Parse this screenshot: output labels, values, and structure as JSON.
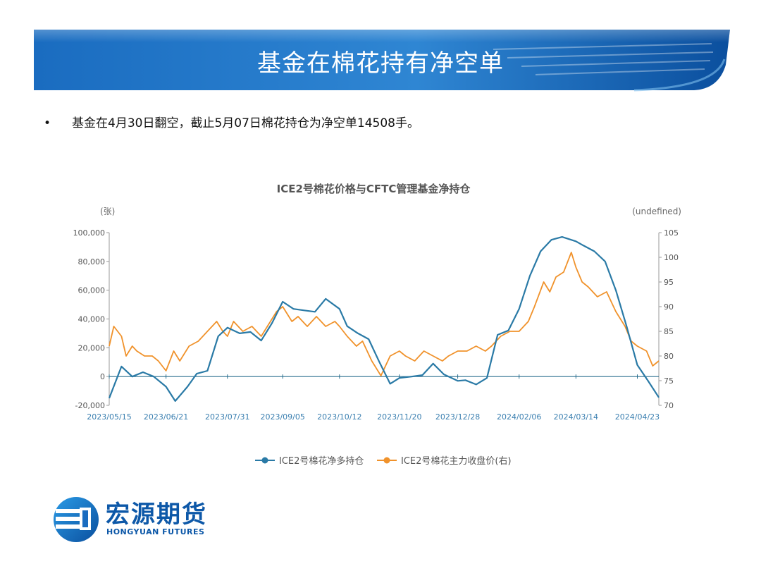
{
  "slide": {
    "title": "基金在棉花持有净空单",
    "bullet_marker": "•",
    "bullet_text": "基金在4月30日翻空，截止5月07日棉花持仓为净空单14508手。"
  },
  "logo": {
    "cn": "宏源期货",
    "en": "HONGYUAN FUTURES"
  },
  "colors": {
    "banner_dark": "#0b56a8",
    "banner_light": "#3f8fd6",
    "series_blue": "#2a7aa6",
    "series_orange": "#f0922b",
    "text_gray": "#666666"
  },
  "chart_data": {
    "type": "line",
    "title": "ICE2号棉花价格与CFTC管理基金净持仓",
    "ylabel_left": "(张)",
    "ylabel_right": "(undefined)",
    "ylim_left": [
      -20000,
      100000
    ],
    "ylim_right": [
      70,
      105
    ],
    "y_ticks_left": [
      "100,000",
      "80,000",
      "60,000",
      "40,000",
      "20,000",
      "0",
      "-20,000"
    ],
    "y_ticks_right": [
      "105",
      "100",
      "95",
      "90",
      "85",
      "80",
      "75",
      "70"
    ],
    "x_ticks": [
      "2023/05/15",
      "2023/06/21",
      "2023/07/31",
      "2023/09/05",
      "2023/10/12",
      "2023/11/20",
      "2023/12/28",
      "2024/02/06",
      "2024/03/14",
      "2024/04/23"
    ],
    "legend_position": "bottom",
    "series": [
      {
        "name": "ICE2号棉花净多持仓",
        "axis": "left",
        "x": [
          "2023/05/15",
          "2023/05/23",
          "2023/05/30",
          "2023/06/06",
          "2023/06/13",
          "2023/06/21",
          "2023/06/27",
          "2023/07/05",
          "2023/07/11",
          "2023/07/18",
          "2023/07/25",
          "2023/07/31",
          "2023/08/08",
          "2023/08/15",
          "2023/08/22",
          "2023/08/29",
          "2023/09/05",
          "2023/09/12",
          "2023/09/19",
          "2023/09/26",
          "2023/10/03",
          "2023/10/12",
          "2023/10/17",
          "2023/10/24",
          "2023/10/31",
          "2023/11/07",
          "2023/11/14",
          "2023/11/20",
          "2023/11/28",
          "2023/12/05",
          "2023/12/12",
          "2023/12/19",
          "2023/12/28",
          "2024/01/02",
          "2024/01/09",
          "2024/01/16",
          "2024/01/23",
          "2024/01/30",
          "2024/02/06",
          "2024/02/13",
          "2024/02/20",
          "2024/02/27",
          "2024/03/05",
          "2024/03/14",
          "2024/03/19",
          "2024/03/26",
          "2024/04/02",
          "2024/04/09",
          "2024/04/16",
          "2024/04/23",
          "2024/04/30",
          "2024/05/07"
        ],
        "values": [
          -15000,
          7000,
          0,
          3000,
          0,
          -7000,
          -17000,
          -7000,
          2000,
          4000,
          28000,
          34000,
          30000,
          31000,
          25000,
          37000,
          52000,
          47000,
          46000,
          45000,
          54000,
          47000,
          35000,
          30000,
          26000,
          10000,
          -5000,
          -1000,
          0,
          1000,
          9000,
          1500,
          -3000,
          -2500,
          -5500,
          -1000,
          29000,
          32000,
          47000,
          70000,
          87000,
          95000,
          97000,
          94000,
          91000,
          87000,
          80000,
          60000,
          35000,
          8000,
          -3000,
          -14508
        ]
      },
      {
        "name": "ICE2号棉花主力收盘价(右)",
        "axis": "right",
        "x": [
          "2023/05/15",
          "2023/05/18",
          "2023/05/23",
          "2023/05/26",
          "2023/05/30",
          "2023/06/02",
          "2023/06/07",
          "2023/06/12",
          "2023/06/16",
          "2023/06/21",
          "2023/06/26",
          "2023/06/30",
          "2023/07/06",
          "2023/07/12",
          "2023/07/18",
          "2023/07/24",
          "2023/07/28",
          "2023/07/31",
          "2023/08/04",
          "2023/08/10",
          "2023/08/16",
          "2023/08/22",
          "2023/08/28",
          "2023/09/01",
          "2023/09/05",
          "2023/09/11",
          "2023/09/15",
          "2023/09/21",
          "2023/09/27",
          "2023/10/03",
          "2023/10/09",
          "2023/10/12",
          "2023/10/17",
          "2023/10/23",
          "2023/10/27",
          "2023/11/02",
          "2023/11/08",
          "2023/11/14",
          "2023/11/20",
          "2023/11/24",
          "2023/11/30",
          "2023/12/06",
          "2023/12/12",
          "2023/12/18",
          "2023/12/22",
          "2023/12/28",
          "2024/01/03",
          "2024/01/09",
          "2024/01/15",
          "2024/01/19",
          "2024/01/25",
          "2024/01/31",
          "2024/02/06",
          "2024/02/12",
          "2024/02/16",
          "2024/02/22",
          "2024/02/26",
          "2024/03/01",
          "2024/03/06",
          "2024/03/11",
          "2024/03/14",
          "2024/03/18",
          "2024/03/22",
          "2024/03/28",
          "2024/04/03",
          "2024/04/09",
          "2024/04/15",
          "2024/04/19",
          "2024/04/23",
          "2024/04/29",
          "2024/05/03",
          "2024/05/07"
        ],
        "values": [
          82,
          86,
          84,
          80,
          82,
          81,
          80,
          80,
          79,
          77,
          81,
          79,
          82,
          83,
          85,
          87,
          85,
          84,
          87,
          85,
          86,
          84,
          87,
          89,
          90,
          87,
          88,
          86,
          88,
          86,
          87,
          86,
          84,
          82,
          83,
          79,
          76,
          80,
          81,
          80,
          79,
          81,
          80,
          79,
          80,
          81,
          81,
          82,
          81,
          82,
          84,
          85,
          85,
          87,
          90,
          95,
          93,
          96,
          97,
          101,
          98,
          95,
          94,
          92,
          93,
          89,
          86,
          83,
          82,
          81,
          78,
          79
        ]
      }
    ]
  }
}
